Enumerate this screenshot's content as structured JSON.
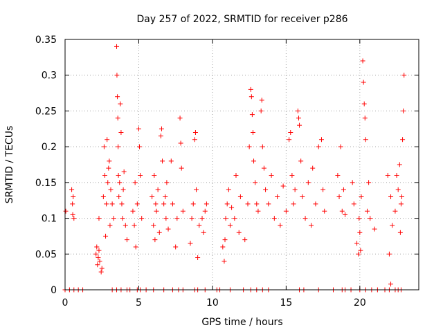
{
  "chart_data": {
    "type": "scatter",
    "title": "Day 257 of 2022, SRMTID for receiver p286",
    "xlabel": "GPS time / hours",
    "ylabel": "SRMTID / TECUs",
    "xlim": [
      0,
      24
    ],
    "ylim": [
      0,
      0.35
    ],
    "xticks": [
      0,
      5,
      10,
      15,
      20
    ],
    "yticks": [
      0,
      0.05,
      0.1,
      0.15,
      0.2,
      0.25,
      0.3,
      0.35
    ],
    "xtick_labels": [
      "0",
      "5",
      "10",
      "15",
      "20"
    ],
    "ytick_labels": [
      "0",
      "0.05",
      "0.1",
      "0.15",
      "0.2",
      "0.25",
      "0.3",
      "0.35"
    ],
    "grid": true,
    "marker": "+",
    "color": "#ff0000",
    "series": [
      {
        "name": "SRMTID",
        "points": [
          [
            0.05,
            0.11
          ],
          [
            0.45,
            0.14
          ],
          [
            0.5,
            0.12
          ],
          [
            0.52,
            0.105
          ],
          [
            0.55,
            0.13
          ],
          [
            0.6,
            0.1
          ],
          [
            2.1,
            0.05
          ],
          [
            2.15,
            0.06
          ],
          [
            2.2,
            0.035
          ],
          [
            2.25,
            0.045
          ],
          [
            2.3,
            0.055
          ],
          [
            2.3,
            0.1
          ],
          [
            2.35,
            0.04
          ],
          [
            2.45,
            0.025
          ],
          [
            2.5,
            0.03
          ],
          [
            2.6,
            0.13
          ],
          [
            2.65,
            0.2
          ],
          [
            2.7,
            0.16
          ],
          [
            2.75,
            0.075
          ],
          [
            2.8,
            0.12
          ],
          [
            2.85,
            0.21
          ],
          [
            2.9,
            0.15
          ],
          [
            2.95,
            0.17
          ],
          [
            3.0,
            0.18
          ],
          [
            3.05,
            0.09
          ],
          [
            3.1,
            0.14
          ],
          [
            3.2,
            0.12
          ],
          [
            3.3,
            0.1
          ],
          [
            3.5,
            0.34
          ],
          [
            3.52,
            0.3
          ],
          [
            3.55,
            0.27
          ],
          [
            3.58,
            0.24
          ],
          [
            3.6,
            0.2
          ],
          [
            3.62,
            0.16
          ],
          [
            3.65,
            0.13
          ],
          [
            3.7,
            0.15
          ],
          [
            3.75,
            0.26
          ],
          [
            3.8,
            0.22
          ],
          [
            3.85,
            0.12
          ],
          [
            3.9,
            0.1
          ],
          [
            3.95,
            0.14
          ],
          [
            4.0,
            0.165
          ],
          [
            4.1,
            0.09
          ],
          [
            4.2,
            0.07
          ],
          [
            4.6,
            0.11
          ],
          [
            4.7,
            0.09
          ],
          [
            4.75,
            0.15
          ],
          [
            4.8,
            0.06
          ],
          [
            4.9,
            0.12
          ],
          [
            5.0,
            0.225
          ],
          [
            5.05,
            0.2
          ],
          [
            5.1,
            0.16
          ],
          [
            5.2,
            0.1
          ],
          [
            5.9,
            0.13
          ],
          [
            6.0,
            0.09
          ],
          [
            6.05,
            0.16
          ],
          [
            6.1,
            0.07
          ],
          [
            6.15,
            0.12
          ],
          [
            6.2,
            0.11
          ],
          [
            6.3,
            0.14
          ],
          [
            6.4,
            0.08
          ],
          [
            6.5,
            0.215
          ],
          [
            6.55,
            0.225
          ],
          [
            6.6,
            0.18
          ],
          [
            6.7,
            0.12
          ],
          [
            6.8,
            0.13
          ],
          [
            6.85,
            0.1
          ],
          [
            6.9,
            0.15
          ],
          [
            7.0,
            0.085
          ],
          [
            7.2,
            0.18
          ],
          [
            7.3,
            0.12
          ],
          [
            7.5,
            0.06
          ],
          [
            7.6,
            0.1
          ],
          [
            7.8,
            0.24
          ],
          [
            7.85,
            0.205
          ],
          [
            7.9,
            0.17
          ],
          [
            8.0,
            0.11
          ],
          [
            8.5,
            0.065
          ],
          [
            8.6,
            0.1
          ],
          [
            8.7,
            0.12
          ],
          [
            8.8,
            0.21
          ],
          [
            8.85,
            0.22
          ],
          [
            8.9,
            0.14
          ],
          [
            9.0,
            0.045
          ],
          [
            9.1,
            0.09
          ],
          [
            9.3,
            0.1
          ],
          [
            9.4,
            0.08
          ],
          [
            9.5,
            0.11
          ],
          [
            9.6,
            0.12
          ],
          [
            10.7,
            0.06
          ],
          [
            10.8,
            0.04
          ],
          [
            10.85,
            0.07
          ],
          [
            10.9,
            0.1
          ],
          [
            11.0,
            0.12
          ],
          [
            11.1,
            0.14
          ],
          [
            11.2,
            0.09
          ],
          [
            11.3,
            0.115
          ],
          [
            11.5,
            0.1
          ],
          [
            11.6,
            0.16
          ],
          [
            11.8,
            0.08
          ],
          [
            11.9,
            0.13
          ],
          [
            12.2,
            0.07
          ],
          [
            12.4,
            0.12
          ],
          [
            12.5,
            0.2
          ],
          [
            12.6,
            0.28
          ],
          [
            12.65,
            0.27
          ],
          [
            12.7,
            0.245
          ],
          [
            12.75,
            0.22
          ],
          [
            12.8,
            0.18
          ],
          [
            12.9,
            0.15
          ],
          [
            13.0,
            0.12
          ],
          [
            13.1,
            0.11
          ],
          [
            13.3,
            0.25
          ],
          [
            13.35,
            0.265
          ],
          [
            13.4,
            0.2
          ],
          [
            13.5,
            0.17
          ],
          [
            13.6,
            0.14
          ],
          [
            13.8,
            0.12
          ],
          [
            14.0,
            0.16
          ],
          [
            14.2,
            0.1
          ],
          [
            14.4,
            0.13
          ],
          [
            14.6,
            0.09
          ],
          [
            14.8,
            0.145
          ],
          [
            15.0,
            0.11
          ],
          [
            15.2,
            0.21
          ],
          [
            15.3,
            0.22
          ],
          [
            15.4,
            0.16
          ],
          [
            15.5,
            0.12
          ],
          [
            15.6,
            0.14
          ],
          [
            15.8,
            0.25
          ],
          [
            15.85,
            0.24
          ],
          [
            15.9,
            0.23
          ],
          [
            16.0,
            0.18
          ],
          [
            16.1,
            0.13
          ],
          [
            16.3,
            0.1
          ],
          [
            16.5,
            0.15
          ],
          [
            16.7,
            0.09
          ],
          [
            16.8,
            0.17
          ],
          [
            17.0,
            0.12
          ],
          [
            17.2,
            0.2
          ],
          [
            17.4,
            0.21
          ],
          [
            17.5,
            0.14
          ],
          [
            17.6,
            0.11
          ],
          [
            18.5,
            0.16
          ],
          [
            18.6,
            0.13
          ],
          [
            18.7,
            0.2
          ],
          [
            18.8,
            0.11
          ],
          [
            18.9,
            0.14
          ],
          [
            19.0,
            0.105
          ],
          [
            19.5,
            0.15
          ],
          [
            19.6,
            0.12
          ],
          [
            19.8,
            0.065
          ],
          [
            19.9,
            0.05
          ],
          [
            19.95,
            0.1
          ],
          [
            20.0,
            0.08
          ],
          [
            20.05,
            0.055
          ],
          [
            20.1,
            0.13
          ],
          [
            20.2,
            0.32
          ],
          [
            20.25,
            0.29
          ],
          [
            20.3,
            0.26
          ],
          [
            20.35,
            0.24
          ],
          [
            20.4,
            0.21
          ],
          [
            20.5,
            0.11
          ],
          [
            20.6,
            0.15
          ],
          [
            20.7,
            0.1
          ],
          [
            21.0,
            0.085
          ],
          [
            21.9,
            0.16
          ],
          [
            22.0,
            0.05
          ],
          [
            22.1,
            0.13
          ],
          [
            22.2,
            0.09
          ],
          [
            22.4,
            0.11
          ],
          [
            22.5,
            0.16
          ],
          [
            22.6,
            0.14
          ],
          [
            22.7,
            0.175
          ],
          [
            22.75,
            0.08
          ],
          [
            22.8,
            0.12
          ],
          [
            22.85,
            0.13
          ],
          [
            22.9,
            0.21
          ],
          [
            22.95,
            0.25
          ],
          [
            23.0,
            0.3
          ],
          [
            0.0,
            0.0
          ],
          [
            0.3,
            0.0
          ],
          [
            0.6,
            0.0
          ],
          [
            0.9,
            0.0
          ],
          [
            1.2,
            0.0
          ],
          [
            3.2,
            0.0
          ],
          [
            3.5,
            0.0
          ],
          [
            3.8,
            0.0
          ],
          [
            4.2,
            0.0
          ],
          [
            4.4,
            0.0
          ],
          [
            4.9,
            0.0
          ],
          [
            5.1,
            0.0
          ],
          [
            5.5,
            0.0
          ],
          [
            6.0,
            0.0
          ],
          [
            6.7,
            0.0
          ],
          [
            7.3,
            0.0
          ],
          [
            7.7,
            0.0
          ],
          [
            8.0,
            0.0
          ],
          [
            8.8,
            0.0
          ],
          [
            9.0,
            0.0
          ],
          [
            9.5,
            0.0
          ],
          [
            10.3,
            0.0
          ],
          [
            10.5,
            0.0
          ],
          [
            11.2,
            0.0
          ],
          [
            12.1,
            0.0
          ],
          [
            12.6,
            0.0
          ],
          [
            13.0,
            0.0
          ],
          [
            13.4,
            0.0
          ],
          [
            13.8,
            0.0
          ],
          [
            15.9,
            0.0
          ],
          [
            16.2,
            0.0
          ],
          [
            17.2,
            0.0
          ],
          [
            18.2,
            0.0
          ],
          [
            18.8,
            0.0
          ],
          [
            19.0,
            0.0
          ],
          [
            19.4,
            0.0
          ],
          [
            20.0,
            0.0
          ],
          [
            20.4,
            0.0
          ],
          [
            20.8,
            0.0
          ],
          [
            21.2,
            0.0
          ],
          [
            21.7,
            0.0
          ],
          [
            22.0,
            0.0
          ],
          [
            22.1,
            0.008
          ],
          [
            22.4,
            0.0
          ],
          [
            22.6,
            0.0
          ],
          [
            22.8,
            0.0
          ]
        ]
      }
    ]
  }
}
